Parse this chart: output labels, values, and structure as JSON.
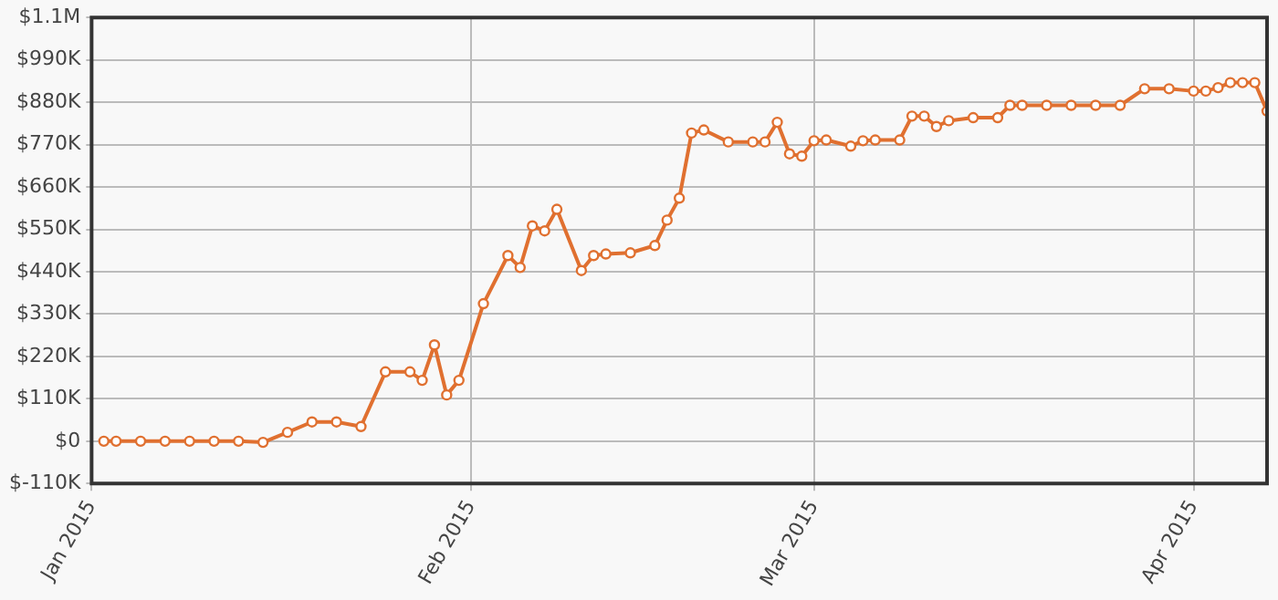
{
  "chart_data": {
    "type": "line",
    "x": [
      "2015-01-02",
      "2015-01-03",
      "2015-01-05",
      "2015-01-07",
      "2015-01-09",
      "2015-01-11",
      "2015-01-13",
      "2015-01-15",
      "2015-01-17",
      "2015-01-19",
      "2015-01-21",
      "2015-01-23",
      "2015-01-25",
      "2015-01-27",
      "2015-01-28",
      "2015-01-29",
      "2015-01-30",
      "2015-01-31",
      "2015-02-02",
      "2015-02-04",
      "2015-02-05",
      "2015-02-06",
      "2015-02-07",
      "2015-02-08",
      "2015-02-10",
      "2015-02-11",
      "2015-02-12",
      "2015-02-14",
      "2015-02-16",
      "2015-02-17",
      "2015-02-18",
      "2015-02-19",
      "2015-02-20",
      "2015-02-22",
      "2015-02-24",
      "2015-02-25",
      "2015-02-26",
      "2015-02-27",
      "2015-02-28",
      "2015-03-01",
      "2015-03-02",
      "2015-03-04",
      "2015-03-05",
      "2015-03-06",
      "2015-03-08",
      "2015-03-09",
      "2015-03-10",
      "2015-03-11",
      "2015-03-12",
      "2015-03-14",
      "2015-03-16",
      "2015-03-17",
      "2015-03-18",
      "2015-03-20",
      "2015-03-22",
      "2015-03-24",
      "2015-03-26",
      "2015-03-28",
      "2015-03-30",
      "2015-04-01",
      "2015-04-02",
      "2015-04-03",
      "2015-04-04",
      "2015-04-05",
      "2015-04-06",
      "2015-04-07"
    ],
    "series": [
      {
        "color": "#e07030",
        "values": [
          0,
          0,
          0,
          0,
          0,
          0,
          0,
          -3000,
          23000,
          50000,
          50000,
          38000,
          180000,
          180000,
          158000,
          250000,
          120000,
          158000,
          357000,
          482000,
          451000,
          559000,
          546000,
          602000,
          443000,
          482000,
          486000,
          489000,
          508000,
          574000,
          631000,
          800000,
          808000,
          777000,
          777000,
          777000,
          828000,
          746000,
          740000,
          780000,
          782000,
          766000,
          780000,
          782000,
          782000,
          844000,
          844000,
          817000,
          832000,
          840000,
          840000,
          872000,
          872000,
          872000,
          872000,
          872000,
          872000,
          915000,
          915000,
          909000,
          909000,
          918000,
          931000,
          931000,
          931000,
          857000
        ]
      }
    ],
    "xlim": [
      "2015-01-01",
      "2015-04-07"
    ],
    "xticks": [
      {
        "value": "2015-01-01",
        "label": "Jan 2015"
      },
      {
        "value": "2015-02-01",
        "label": "Feb 2015"
      },
      {
        "value": "2015-03-01",
        "label": "Mar 2015"
      },
      {
        "value": "2015-04-01",
        "label": "Apr 2015"
      }
    ],
    "ylim": [
      -110000,
      1100000
    ],
    "yticks": [
      {
        "value": -110000,
        "label": "$-110K"
      },
      {
        "value": 0,
        "label": "$0"
      },
      {
        "value": 110000,
        "label": "$110K"
      },
      {
        "value": 220000,
        "label": "$220K"
      },
      {
        "value": 330000,
        "label": "$330K"
      },
      {
        "value": 440000,
        "label": "$440K"
      },
      {
        "value": 550000,
        "label": "$550K"
      },
      {
        "value": 660000,
        "label": "$660K"
      },
      {
        "value": 770000,
        "label": "$770K"
      },
      {
        "value": 880000,
        "label": "$880K"
      },
      {
        "value": 990000,
        "label": "$990K"
      },
      {
        "value": 1100000,
        "label": "$1.1M"
      }
    ],
    "grid": true,
    "marker": "circle",
    "line_style": "solid"
  }
}
